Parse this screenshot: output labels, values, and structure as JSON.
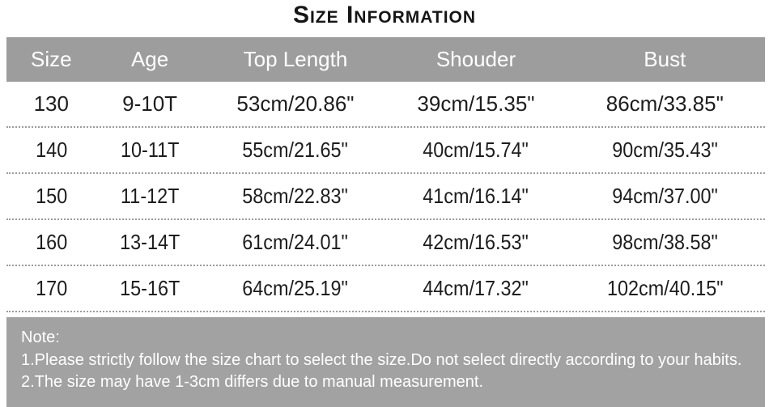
{
  "title": "Size Information",
  "table": {
    "columns": [
      "Size",
      "Age",
      "Top Length",
      "Shouder",
      "Bust"
    ],
    "rows": [
      [
        "130",
        "9-10T",
        "53cm/20.86\"",
        "39cm/15.35\"",
        "86cm/33.85\""
      ],
      [
        "140",
        "10-11T",
        "55cm/21.65\"",
        "40cm/15.74\"",
        "90cm/35.43\""
      ],
      [
        "150",
        "11-12T",
        "58cm/22.83\"",
        "41cm/16.14\"",
        "94cm/37.00\""
      ],
      [
        "160",
        "13-14T",
        "61cm/24.01\"",
        "42cm/16.53\"",
        "98cm/38.58\""
      ],
      [
        "170",
        "15-16T",
        "64cm/25.19\"",
        "44cm/17.32\"",
        "102cm/40.15\""
      ]
    ]
  },
  "note": {
    "heading": "Note:",
    "lines": [
      "1.Please strictly follow the size chart to select the size.Do not select directly according to your habits.",
      "2.The size may have 1-3cm differs due to manual measurement."
    ]
  },
  "colors": {
    "header_bg": "#9d9d9d",
    "note_bg": "#a2a2a2",
    "separator": "#9c9c9c",
    "header_text": "#ffffff",
    "body_text": "#1d1d1d",
    "title_color": "#151515"
  }
}
